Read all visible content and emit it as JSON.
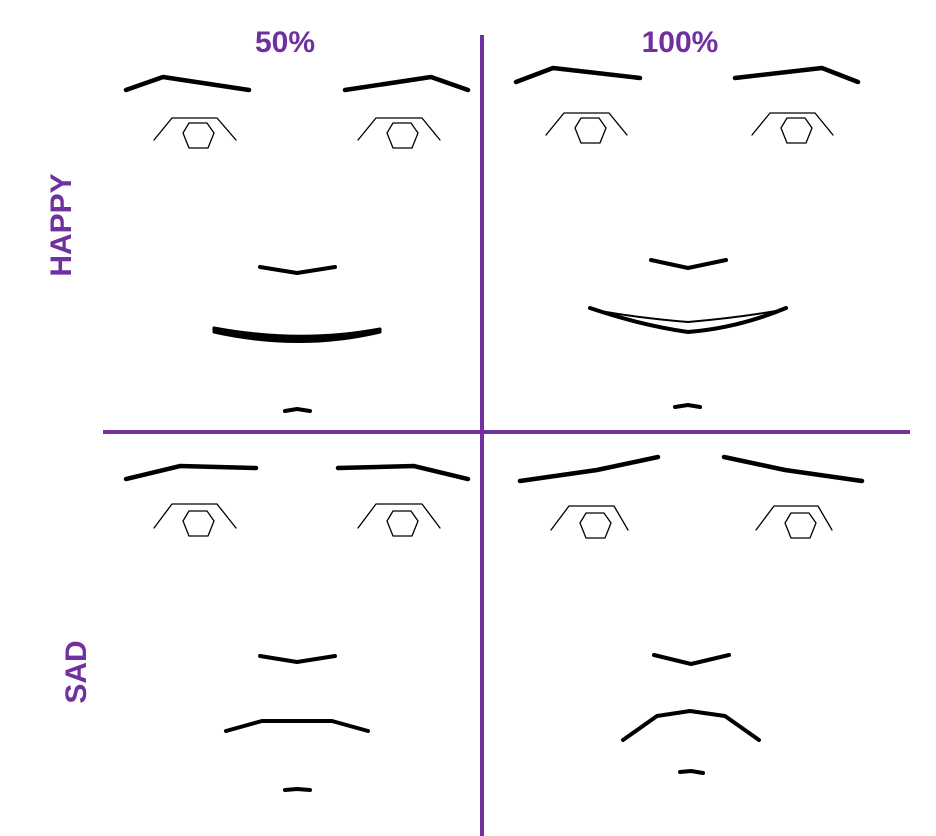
{
  "title": "",
  "accent_color": "#7030a0",
  "columns": [
    {
      "label": "50%"
    },
    {
      "label": "100%"
    }
  ],
  "rows": [
    {
      "label": "HAPPY"
    },
    {
      "label": "SAD"
    }
  ],
  "cells": [
    {
      "emotion": "HAPPY",
      "intensity": "50%"
    },
    {
      "emotion": "HAPPY",
      "intensity": "100%"
    },
    {
      "emotion": "SAD",
      "intensity": "50%"
    },
    {
      "emotion": "SAD",
      "intensity": "100%"
    }
  ]
}
